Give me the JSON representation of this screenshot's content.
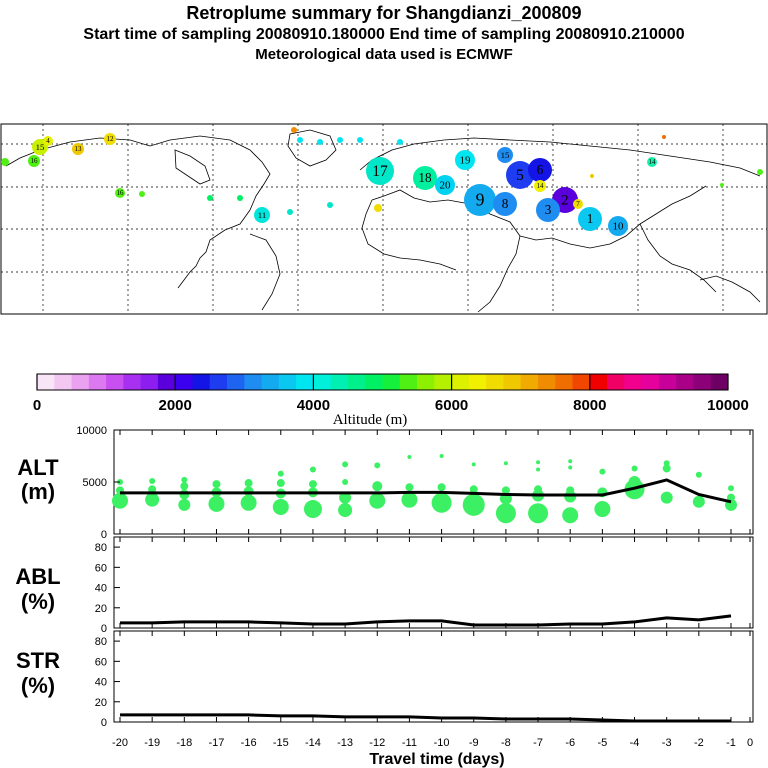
{
  "header": {
    "title": "Retroplume summary for Shangdianzi_200809",
    "sampling": "Start time of sampling 20080910.180000     End time of sampling 20080910.210000",
    "met": "Meteorological data used is ECMWF"
  },
  "colorbar": {
    "label": "Altitude (m)",
    "ticks": [
      "0",
      "2000",
      "4000",
      "6000",
      "8000",
      "10000"
    ],
    "colors": [
      "#f8e6f8",
      "#f2c8f2",
      "#eaa2f0",
      "#dc78f0",
      "#c850f0",
      "#a830f0",
      "#8c1ef0",
      "#5a00dc",
      "#3c00f0",
      "#1414e6",
      "#1e3cf0",
      "#1e64f0",
      "#1e8cf0",
      "#14aaf0",
      "#0ac8f0",
      "#00e6f0",
      "#00f0dc",
      "#00f0b4",
      "#00f08c",
      "#00f064",
      "#14f03c",
      "#50f014",
      "#8cf000",
      "#b4f000",
      "#dcf000",
      "#f0f000",
      "#f0dc00",
      "#f0c800",
      "#f0aa00",
      "#f08c00",
      "#f06e00",
      "#f04600",
      "#f00000",
      "#f00064",
      "#f0008c",
      "#e6009c",
      "#c8009a",
      "#aa0088",
      "#8c0078",
      "#6e0064"
    ]
  },
  "map_labels": [
    "15",
    "4",
    "12",
    "13",
    "16",
    "17",
    "18",
    "19",
    "20",
    "11",
    "15",
    "7",
    "16",
    "5",
    "6",
    "2",
    "3",
    "1",
    "10",
    "9",
    "8",
    "14"
  ],
  "chart_data": [
    {
      "type": "line",
      "panel": "ALT",
      "ylabel": "ALT (m)",
      "ylim": [
        0,
        10000
      ],
      "yticks": [
        "10000",
        "5000",
        "0"
      ],
      "x": [
        -20,
        -19,
        -18,
        -17,
        -16,
        -15,
        -14,
        -13,
        -12,
        -11,
        -10,
        -9,
        -8,
        -7,
        -6,
        -5,
        -4,
        -3,
        -2,
        -1
      ],
      "values": [
        3950,
        3950,
        3950,
        3950,
        3950,
        3950,
        3950,
        3950,
        3950,
        4000,
        4000,
        3900,
        3800,
        3750,
        3750,
        3750,
        4400,
        5200,
        3800,
        3100
      ],
      "dots": [
        [
          -20,
          3200,
          8
        ],
        [
          -20,
          4200,
          4
        ],
        [
          -20,
          5000,
          3
        ],
        [
          -19,
          3300,
          7
        ],
        [
          -19,
          4300,
          4
        ],
        [
          -19,
          5100,
          3
        ],
        [
          -18,
          2800,
          6
        ],
        [
          -18,
          3800,
          5
        ],
        [
          -18,
          4600,
          4
        ],
        [
          -18,
          5200,
          3
        ],
        [
          -17,
          2900,
          8
        ],
        [
          -17,
          4000,
          5
        ],
        [
          -17,
          4800,
          4
        ],
        [
          -16,
          3000,
          8
        ],
        [
          -16,
          4100,
          5
        ],
        [
          -16,
          4900,
          4
        ],
        [
          -15,
          2600,
          8
        ],
        [
          -15,
          3900,
          5
        ],
        [
          -15,
          4900,
          4
        ],
        [
          -15,
          5800,
          3
        ],
        [
          -14,
          2400,
          9
        ],
        [
          -14,
          4000,
          5
        ],
        [
          -14,
          4800,
          4
        ],
        [
          -14,
          6200,
          3
        ],
        [
          -13,
          2300,
          7
        ],
        [
          -13,
          3500,
          6
        ],
        [
          -13,
          5000,
          3
        ],
        [
          -13,
          6700,
          3
        ],
        [
          -12,
          3200,
          8
        ],
        [
          -12,
          4600,
          5
        ],
        [
          -12,
          6600,
          3
        ],
        [
          -11,
          3300,
          8
        ],
        [
          -11,
          4500,
          4
        ],
        [
          -11,
          7400,
          2
        ],
        [
          -10,
          3000,
          10
        ],
        [
          -10,
          4500,
          4
        ],
        [
          -10,
          7500,
          2
        ],
        [
          -9,
          2800,
          11
        ],
        [
          -9,
          4300,
          4
        ],
        [
          -9,
          6700,
          2
        ],
        [
          -8,
          2000,
          10
        ],
        [
          -8,
          3400,
          6
        ],
        [
          -8,
          4200,
          4
        ],
        [
          -8,
          6800,
          2
        ],
        [
          -7,
          2000,
          10
        ],
        [
          -7,
          3700,
          6
        ],
        [
          -7,
          4300,
          4
        ],
        [
          -7,
          6200,
          2
        ],
        [
          -7,
          6900,
          2
        ],
        [
          -6,
          1800,
          8
        ],
        [
          -6,
          3600,
          6
        ],
        [
          -6,
          4200,
          4
        ],
        [
          -6,
          6400,
          2
        ],
        [
          -6,
          7000,
          2
        ],
        [
          -5,
          2400,
          8
        ],
        [
          -5,
          4000,
          5
        ],
        [
          -5,
          6000,
          3
        ],
        [
          -4,
          4300,
          10
        ],
        [
          -4,
          5000,
          6
        ],
        [
          -4,
          6300,
          3
        ],
        [
          -3,
          3500,
          6
        ],
        [
          -3,
          6300,
          4
        ],
        [
          -3,
          6800,
          3
        ],
        [
          -2,
          3100,
          6
        ],
        [
          -2,
          5700,
          3
        ],
        [
          -1,
          2800,
          6
        ],
        [
          -1,
          3500,
          4
        ],
        [
          -1,
          4400,
          3
        ]
      ]
    },
    {
      "type": "line",
      "panel": "ABL",
      "ylabel": "ABL (%)",
      "ylim": [
        0,
        90
      ],
      "yticks": [
        "80",
        "60",
        "40",
        "20",
        "0"
      ],
      "x": [
        -20,
        -19,
        -18,
        -17,
        -16,
        -15,
        -14,
        -13,
        -12,
        -11,
        -10,
        -9,
        -8,
        -7,
        -6,
        -5,
        -4,
        -3,
        -2,
        -1
      ],
      "values": [
        5,
        5,
        6,
        6,
        6,
        5,
        4,
        4,
        6,
        7,
        7,
        3,
        3,
        3,
        4,
        4,
        6,
        10,
        8,
        12
      ]
    },
    {
      "type": "line",
      "panel": "STR",
      "ylabel": "STR (%)",
      "ylim": [
        0,
        90
      ],
      "yticks": [
        "80",
        "60",
        "40",
        "20",
        "0"
      ],
      "x": [
        -20,
        -19,
        -18,
        -17,
        -16,
        -15,
        -14,
        -13,
        -12,
        -11,
        -10,
        -9,
        -8,
        -7,
        -6,
        -5,
        -4,
        -3,
        -2,
        -1
      ],
      "values": [
        7,
        7,
        7,
        7,
        7,
        6,
        6,
        5,
        5,
        5,
        4,
        4,
        3,
        3,
        3,
        2,
        1,
        1,
        1,
        1
      ]
    }
  ],
  "x_axis": {
    "label": "Travel time (days)",
    "ticks": [
      "-20",
      "-19",
      "-18",
      "-17",
      "-16",
      "-15",
      "-14",
      "-13",
      "-12",
      "-11",
      "-10",
      "-9",
      "-8",
      "-7",
      "-6",
      "-5",
      "-4",
      "-3",
      "-2",
      "-1",
      "0"
    ]
  }
}
